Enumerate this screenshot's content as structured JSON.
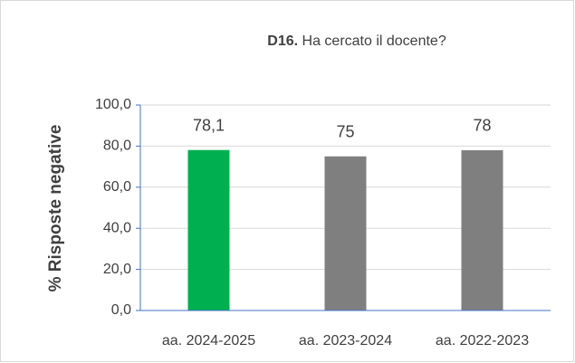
{
  "chart_data": {
    "type": "bar",
    "title_prefix": "D16.",
    "title": "Ha cercato il docente?",
    "ylabel": "% Risposte negative",
    "categories": [
      "aa. 2024-2025",
      "aa. 2023-2024",
      "aa. 2022-2023"
    ],
    "values": [
      78.1,
      75,
      78
    ],
    "value_labels": [
      "78,1",
      "75",
      "78"
    ],
    "colors": [
      "#00b050",
      "#7f7f7f",
      "#7f7f7f"
    ],
    "ylim": [
      0,
      100
    ],
    "yticks": [
      {
        "value": 0,
        "label": "0,0"
      },
      {
        "value": 20,
        "label": "20,0"
      },
      {
        "value": 40,
        "label": "40,0"
      },
      {
        "value": 60,
        "label": "60,0"
      },
      {
        "value": 80,
        "label": "80,0"
      },
      {
        "value": 100,
        "label": "100,0"
      }
    ],
    "grid": true
  }
}
